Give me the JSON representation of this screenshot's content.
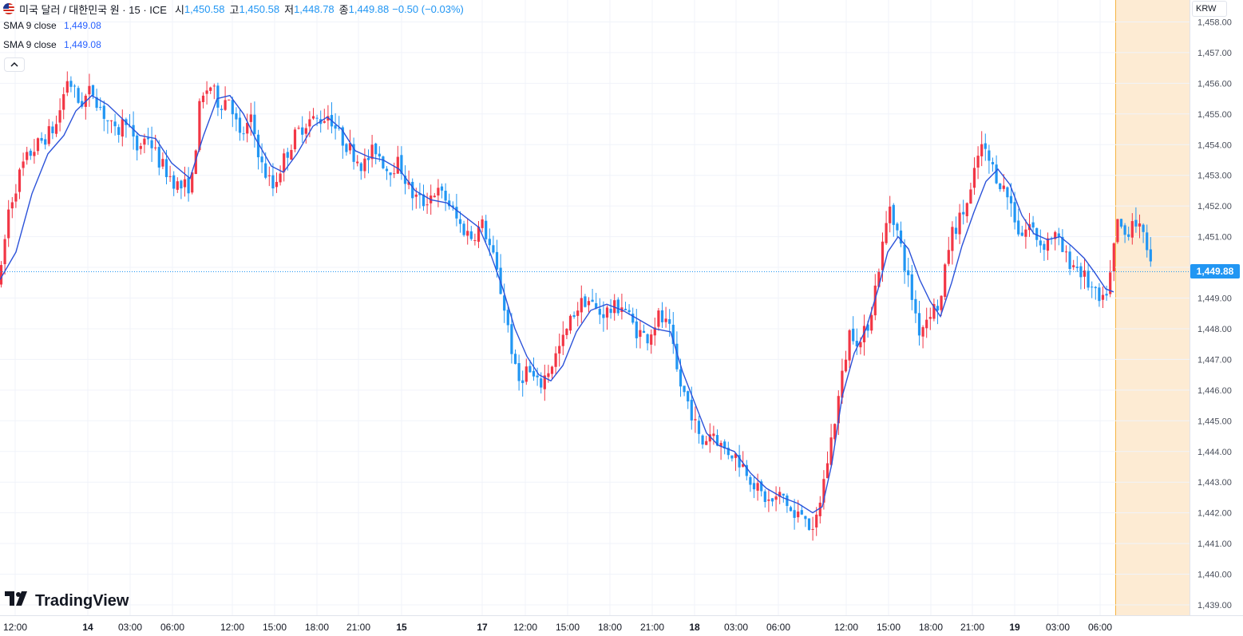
{
  "legend": {
    "symbol": "미국 달러 / 대한민국 원 · 15 · ICE",
    "open_label": "시",
    "open": "1,450.58",
    "high_label": "고",
    "high": "1,450.58",
    "low_label": "저",
    "low": "1,448.78",
    "close_label": "종",
    "close": "1,449.88",
    "change": "−0.50 (−0.03%)"
  },
  "indicators": [
    {
      "name": "SMA 9 close",
      "value": "1,449.08"
    },
    {
      "name": "SMA 9 close",
      "value": "1,449.08"
    }
  ],
  "currency": "KRW",
  "last_price_label": "1,449.88",
  "logo_text": "TradingView",
  "icons": [
    "us-kr-flag-icon",
    "chevron-up-icon",
    "tradingview-logo-icon"
  ],
  "colors": {
    "up": "#f23645",
    "down": "#2196f3",
    "sma": "#2b52d9",
    "grid": "#f0f3fa",
    "session_highlight": "#fdebd3",
    "session_line": "#f5b443",
    "text": "#131722",
    "axis_text": "#4a4f5b"
  },
  "chart_data": {
    "type": "candlestick",
    "interval": "15",
    "y_axis": {
      "ticks": [
        1439,
        1440,
        1441,
        1442,
        1443,
        1444,
        1445,
        1446,
        1447,
        1448,
        1449,
        1450,
        1451,
        1452,
        1453,
        1454,
        1455,
        1456,
        1457,
        1458
      ],
      "tick_labels": [
        "1,439.00",
        "1,440.00",
        "1,441.00",
        "1,442.00",
        "1,443.00",
        "1,444.00",
        "1,445.00",
        "1,446.00",
        "1,447.00",
        "1,448.00",
        "1,449.00",
        "1,450.00",
        "1,451.00",
        "1,452.00",
        "1,453.00",
        "1,454.00",
        "1,455.00",
        "1,456.00",
        "1,457.00",
        "1,458.00"
      ],
      "ylim": [
        1438.6,
        1458.3
      ],
      "position": "right"
    },
    "x_axis": {
      "tick_labels": [
        "12:00",
        "14",
        "03:00",
        "06:00",
        "12:00",
        "15:00",
        "18:00",
        "21:00",
        "15",
        "17",
        "12:00",
        "15:00",
        "18:00",
        "21:00",
        "18",
        "03:00",
        "06:00",
        "12:00",
        "15:00",
        "18:00",
        "21:00",
        "19",
        "03:00",
        "06:00"
      ],
      "bold_labels": [
        "14",
        "15",
        "17",
        "18",
        "19"
      ]
    },
    "price_path": [
      [
        0,
        1449.5
      ],
      [
        10,
        1451.8
      ],
      [
        18,
        1452.5
      ],
      [
        28,
        1453.3
      ],
      [
        40,
        1453.8
      ],
      [
        55,
        1454.2
      ],
      [
        70,
        1454.6
      ],
      [
        85,
        1456.2
      ],
      [
        100,
        1455.3
      ],
      [
        115,
        1455.8
      ],
      [
        130,
        1455.0
      ],
      [
        145,
        1454.3
      ],
      [
        158,
        1454.9
      ],
      [
        170,
        1453.8
      ],
      [
        185,
        1454.3
      ],
      [
        198,
        1453.5
      ],
      [
        212,
        1453.0
      ],
      [
        225,
        1452.6
      ],
      [
        240,
        1452.7
      ],
      [
        250,
        1455.2
      ],
      [
        262,
        1456.0
      ],
      [
        275,
        1455.3
      ],
      [
        288,
        1455.6
      ],
      [
        300,
        1454.2
      ],
      [
        315,
        1454.8
      ],
      [
        328,
        1453.3
      ],
      [
        342,
        1452.6
      ],
      [
        355,
        1453.5
      ],
      [
        370,
        1454.3
      ],
      [
        385,
        1454.8
      ],
      [
        400,
        1454.8
      ],
      [
        412,
        1455.0
      ],
      [
        425,
        1454.3
      ],
      [
        440,
        1453.8
      ],
      [
        455,
        1453.3
      ],
      [
        470,
        1453.9
      ],
      [
        485,
        1453.2
      ],
      [
        500,
        1453.4
      ],
      [
        515,
        1452.4
      ],
      [
        530,
        1452.1
      ],
      [
        545,
        1452.5
      ],
      [
        560,
        1452.2
      ],
      [
        575,
        1451.4
      ],
      [
        590,
        1451.0
      ],
      [
        605,
        1451.4
      ],
      [
        620,
        1450.1
      ],
      [
        635,
        1448.3
      ],
      [
        648,
        1446.2
      ],
      [
        660,
        1446.7
      ],
      [
        675,
        1446.1
      ],
      [
        690,
        1446.8
      ],
      [
        705,
        1447.6
      ],
      [
        720,
        1448.6
      ],
      [
        735,
        1449.0
      ],
      [
        750,
        1448.5
      ],
      [
        765,
        1448.6
      ],
      [
        780,
        1448.8
      ],
      [
        795,
        1448.0
      ],
      [
        810,
        1447.7
      ],
      [
        825,
        1448.4
      ],
      [
        838,
        1448.0
      ],
      [
        850,
        1446.3
      ],
      [
        865,
        1445.4
      ],
      [
        878,
        1444.2
      ],
      [
        892,
        1444.7
      ],
      [
        905,
        1444.1
      ],
      [
        920,
        1443.9
      ],
      [
        935,
        1443.4
      ],
      [
        950,
        1442.7
      ],
      [
        965,
        1442.3
      ],
      [
        980,
        1442.6
      ],
      [
        995,
        1441.8
      ],
      [
        1008,
        1442.1
      ],
      [
        1018,
        1441.2
      ],
      [
        1028,
        1442.5
      ],
      [
        1040,
        1444.2
      ],
      [
        1052,
        1446.0
      ],
      [
        1065,
        1448.0
      ],
      [
        1078,
        1447.5
      ],
      [
        1090,
        1448.4
      ],
      [
        1102,
        1450.2
      ],
      [
        1115,
        1452.1
      ],
      [
        1128,
        1450.7
      ],
      [
        1140,
        1449.3
      ],
      [
        1152,
        1447.9
      ],
      [
        1165,
        1448.6
      ],
      [
        1178,
        1448.8
      ],
      [
        1190,
        1451.0
      ],
      [
        1203,
        1451.6
      ],
      [
        1215,
        1452.3
      ],
      [
        1228,
        1454.0
      ],
      [
        1240,
        1453.4
      ],
      [
        1252,
        1452.8
      ],
      [
        1265,
        1452.2
      ],
      [
        1278,
        1451.0
      ],
      [
        1290,
        1451.4
      ],
      [
        1305,
        1450.7
      ],
      [
        1320,
        1451.1
      ],
      [
        1335,
        1450.3
      ],
      [
        1350,
        1450.0
      ],
      [
        1365,
        1449.4
      ],
      [
        1380,
        1448.7
      ],
      [
        1390,
        1449.6
      ],
      [
        1400,
        1451.5
      ],
      [
        1410,
        1451.0
      ],
      [
        1420,
        1451.7
      ],
      [
        1432,
        1450.9
      ],
      [
        1440,
        1450.6
      ],
      [
        1445,
        1449.9
      ]
    ],
    "sma_path": [
      [
        0,
        1449.6
      ],
      [
        20,
        1450.5
      ],
      [
        40,
        1452.4
      ],
      [
        60,
        1453.7
      ],
      [
        80,
        1454.3
      ],
      [
        95,
        1455.1
      ],
      [
        115,
        1455.6
      ],
      [
        135,
        1455.3
      ],
      [
        155,
        1454.8
      ],
      [
        175,
        1454.3
      ],
      [
        195,
        1454.2
      ],
      [
        215,
        1453.4
      ],
      [
        238,
        1452.9
      ],
      [
        255,
        1454.3
      ],
      [
        272,
        1455.5
      ],
      [
        288,
        1455.6
      ],
      [
        305,
        1455.0
      ],
      [
        320,
        1454.2
      ],
      [
        340,
        1453.3
      ],
      [
        355,
        1453.1
      ],
      [
        372,
        1453.7
      ],
      [
        392,
        1454.6
      ],
      [
        410,
        1454.9
      ],
      [
        428,
        1454.5
      ],
      [
        445,
        1453.8
      ],
      [
        462,
        1453.6
      ],
      [
        480,
        1453.5
      ],
      [
        500,
        1453.2
      ],
      [
        520,
        1452.5
      ],
      [
        540,
        1452.2
      ],
      [
        560,
        1452.1
      ],
      [
        580,
        1451.7
      ],
      [
        600,
        1451.3
      ],
      [
        615,
        1450.4
      ],
      [
        630,
        1449.3
      ],
      [
        645,
        1448.0
      ],
      [
        660,
        1447.1
      ],
      [
        675,
        1446.5
      ],
      [
        690,
        1446.3
      ],
      [
        705,
        1446.8
      ],
      [
        722,
        1447.9
      ],
      [
        740,
        1448.6
      ],
      [
        760,
        1448.8
      ],
      [
        780,
        1448.6
      ],
      [
        800,
        1448.3
      ],
      [
        820,
        1448.0
      ],
      [
        840,
        1447.9
      ],
      [
        855,
        1446.6
      ],
      [
        870,
        1445.6
      ],
      [
        885,
        1444.6
      ],
      [
        900,
        1444.2
      ],
      [
        920,
        1444.0
      ],
      [
        940,
        1443.3
      ],
      [
        960,
        1442.8
      ],
      [
        980,
        1442.5
      ],
      [
        1000,
        1442.3
      ],
      [
        1018,
        1442.0
      ],
      [
        1030,
        1442.2
      ],
      [
        1042,
        1443.6
      ],
      [
        1055,
        1445.8
      ],
      [
        1070,
        1447.2
      ],
      [
        1085,
        1448.0
      ],
      [
        1100,
        1449.3
      ],
      [
        1112,
        1450.5
      ],
      [
        1125,
        1451.0
      ],
      [
        1138,
        1450.6
      ],
      [
        1152,
        1449.6
      ],
      [
        1165,
        1448.9
      ],
      [
        1178,
        1448.4
      ],
      [
        1192,
        1449.5
      ],
      [
        1205,
        1450.7
      ],
      [
        1220,
        1451.8
      ],
      [
        1235,
        1452.8
      ],
      [
        1250,
        1453.2
      ],
      [
        1265,
        1452.7
      ],
      [
        1280,
        1451.7
      ],
      [
        1295,
        1451.1
      ],
      [
        1312,
        1450.9
      ],
      [
        1328,
        1451.0
      ],
      [
        1342,
        1450.7
      ],
      [
        1358,
        1450.3
      ],
      [
        1372,
        1449.8
      ],
      [
        1385,
        1449.3
      ],
      [
        1395,
        1449.2
      ]
    ]
  }
}
